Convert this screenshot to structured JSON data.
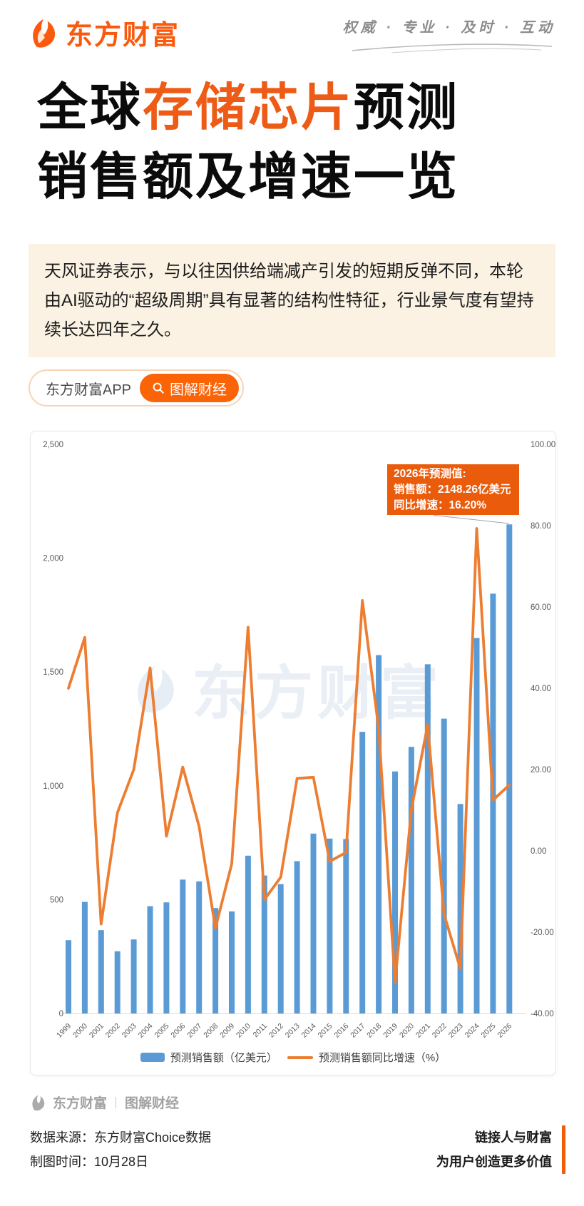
{
  "header": {
    "brand": "东方财富",
    "tagline": "权威 · 专业 · 及时 · 互动"
  },
  "title": {
    "line1_prefix": "全球",
    "line1_highlight": "存储芯片",
    "line1_suffix": "预测",
    "line2": "销售额及增速一览"
  },
  "intro": "天风证券表示，与以往因供给端减产引发的短期反弹不同，本轮由AI驱动的“超级周期”具有显著的结构性特征，行业景气度有望持续长达四年之久。",
  "app_pill": {
    "app_label": "东方财富APP",
    "cta_label": "图解财经"
  },
  "watermark": "东方财富",
  "annotation": {
    "line1": "2026年预测值:",
    "line2": "销售额：2148.26亿美元",
    "line3": "同比增速：16.20%"
  },
  "legend": [
    "预测销售额（亿美元）",
    "预测销售额同比增速（%）"
  ],
  "chart_data": {
    "type": "bar",
    "subtype": "bar+line dual axis",
    "categories": [
      "1999",
      "2000",
      "2001",
      "2002",
      "2003",
      "2004",
      "2005",
      "2006",
      "2007",
      "2008",
      "2009",
      "2010",
      "2011",
      "2012",
      "2013",
      "2014",
      "2015",
      "2016",
      "2017",
      "2018",
      "2019",
      "2020",
      "2021",
      "2022",
      "2023",
      "2024",
      "2025",
      "2026"
    ],
    "series": [
      {
        "name": "预测销售额（亿美元）",
        "type": "bar",
        "axis": "left",
        "color": "#5B9BD5",
        "values": [
          322,
          490,
          366,
          273,
          325,
          471,
          488,
          588,
          580,
          463,
          448,
          693,
          606,
          568,
          669,
          790,
          768,
          766,
          1237,
          1574,
          1063,
          1171,
          1534,
          1295,
          920,
          1649,
          1844,
          2148.26
        ]
      },
      {
        "name": "预测销售额同比增速（%）",
        "type": "line",
        "axis": "right",
        "color": "#ED7D31",
        "values": [
          40,
          52.5,
          -18,
          9.4,
          20,
          45,
          3.6,
          20.6,
          6,
          -19,
          -3.2,
          55,
          -12,
          -6.5,
          17.8,
          18.1,
          -2.6,
          -0.4,
          61.6,
          30,
          -32.4,
          10.2,
          31,
          -15.6,
          -29,
          79.3,
          12.5,
          16.2
        ]
      }
    ],
    "title": "全球存储芯片预测销售额及增速一览",
    "xlabel": "",
    "ylabel_left": "亿美元",
    "ylabel_right": "%",
    "left_axis": {
      "min": 0,
      "max": 2500,
      "ticks": [
        "0",
        "500",
        "1,000",
        "1,500",
        "2,000",
        "2,500"
      ]
    },
    "right_axis": {
      "min": -40,
      "max": 100,
      "ticks": [
        "100.00",
        "80.00",
        "60.00",
        "40.00",
        "20.00",
        "0.00",
        "-20.00",
        "-40.00"
      ]
    },
    "grid": false,
    "legend_position": "bottom",
    "annotation_value": {
      "year": "2026",
      "sales": "2148.26亿美元",
      "growth": "16.20%"
    }
  },
  "footer": {
    "brand": "东方财富",
    "channel": "图解财经",
    "source": "数据来源：东方财富Choice数据",
    "date": "制图时间：10月28日",
    "slogan1": "链接人与财富",
    "slogan2": "为用户创造更多价值"
  }
}
